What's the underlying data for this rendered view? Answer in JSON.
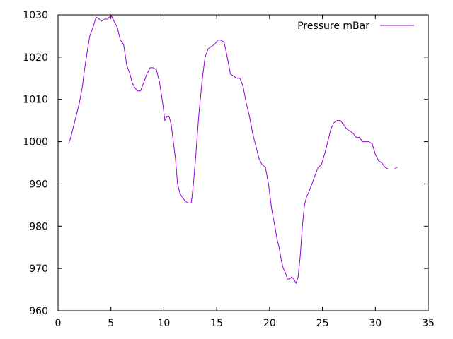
{
  "chart_data": {
    "type": "line",
    "title": "",
    "xlabel": "",
    "ylabel": "",
    "xlim": [
      0,
      35
    ],
    "ylim": [
      960,
      1030
    ],
    "xticks": [
      0,
      5,
      10,
      15,
      20,
      25,
      30,
      35
    ],
    "yticks": [
      960,
      970,
      980,
      990,
      1000,
      1010,
      1020,
      1030
    ],
    "xtick_labels": [
      "0",
      "5",
      "10",
      "15",
      "20",
      "25",
      "30",
      "35"
    ],
    "ytick_labels": [
      "960",
      "970",
      "980",
      "990",
      "1000",
      "1010",
      "1020",
      "1030"
    ],
    "grid": false,
    "legend_position": "top-right",
    "series": [
      {
        "name": "Pressure mBar",
        "color": "#9400d3",
        "x": [
          1.0,
          1.2,
          1.5,
          1.8,
          2.0,
          2.3,
          2.5,
          2.8,
          3.0,
          3.3,
          3.6,
          3.9,
          4.1,
          4.4,
          4.7,
          5.0,
          5.2,
          5.4,
          5.6,
          5.9,
          6.2,
          6.5,
          6.8,
          7.0,
          7.2,
          7.5,
          7.8,
          8.1,
          8.4,
          8.7,
          9.0,
          9.3,
          9.6,
          9.9,
          10.1,
          10.3,
          10.5,
          10.7,
          10.9,
          11.1,
          11.3,
          11.5,
          11.7,
          12.0,
          12.3,
          12.6,
          12.8,
          13.0,
          13.3,
          13.6,
          13.9,
          14.2,
          14.5,
          14.8,
          15.1,
          15.4,
          15.7,
          16.0,
          16.3,
          16.6,
          16.9,
          17.2,
          17.5,
          17.8,
          18.1,
          18.4,
          18.7,
          19.0,
          19.3,
          19.6,
          19.9,
          20.2,
          20.5,
          20.7,
          20.9,
          21.1,
          21.3,
          21.5,
          21.7,
          21.9,
          22.1,
          22.3,
          22.5,
          22.7,
          22.9,
          23.1,
          23.3,
          23.5,
          23.7,
          24.0,
          24.3,
          24.6,
          24.9,
          25.2,
          25.5,
          25.8,
          26.1,
          26.4,
          26.7,
          27.0,
          27.3,
          27.6,
          27.9,
          28.2,
          28.5,
          28.8,
          29.1,
          29.4,
          29.7,
          30.0,
          30.3,
          30.6,
          30.9,
          31.2,
          31.5,
          31.8,
          32.1
        ],
        "y": [
          999.5,
          1001,
          1004,
          1007,
          1009,
          1013,
          1017,
          1022,
          1025,
          1027,
          1029.5,
          1029,
          1028.5,
          1029,
          1029,
          1030,
          1029,
          1028,
          1027,
          1024,
          1023,
          1018,
          1016,
          1014,
          1013,
          1012,
          1012,
          1014,
          1016,
          1017.5,
          1017.5,
          1017,
          1014,
          1009,
          1005,
          1006,
          1006,
          1004,
          1000,
          996,
          990,
          988,
          987,
          986,
          985.5,
          985.5,
          990,
          996,
          1006,
          1014,
          1020,
          1022,
          1022.5,
          1023,
          1024,
          1024,
          1023.5,
          1020,
          1016,
          1015.5,
          1015,
          1015,
          1013,
          1009,
          1006,
          1002,
          999,
          996,
          994.5,
          994,
          990,
          984,
          980,
          977,
          975,
          972,
          970,
          969,
          967.5,
          967.5,
          968,
          967.5,
          966.5,
          968,
          973,
          980,
          985,
          987,
          988,
          990,
          992,
          994,
          994.5,
          997,
          1000,
          1003,
          1004.5,
          1005,
          1005,
          1004,
          1003,
          1002.5,
          1002,
          1001,
          1001,
          1000,
          1000,
          1000,
          999.5,
          997,
          995.5,
          995,
          994,
          993.5,
          993.5,
          993.5,
          994
        ]
      }
    ]
  }
}
